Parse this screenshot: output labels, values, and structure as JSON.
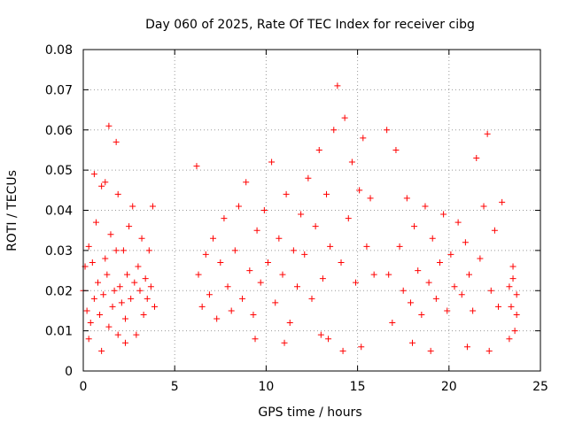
{
  "chart_data": {
    "type": "scatter",
    "title": "Day 060 of 2025, Rate Of TEC Index for receiver cibg",
    "xlabel": "GPS time / hours",
    "ylabel": "ROTI / TECUs",
    "xlim": [
      0,
      25
    ],
    "ylim": [
      0,
      0.08
    ],
    "x_ticks": [
      0,
      5,
      10,
      15,
      20,
      25
    ],
    "x_tick_labels": [
      "0",
      "5",
      "10",
      "15",
      "20",
      "25"
    ],
    "y_ticks": [
      0,
      0.01,
      0.02,
      0.03,
      0.04,
      0.05,
      0.06,
      0.07,
      0.08
    ],
    "y_tick_labels": [
      "0",
      "0.01",
      "0.02",
      "0.03",
      "0.04",
      "0.05",
      "0.06",
      "0.07",
      "0.08"
    ],
    "grid": true,
    "marker": "+",
    "color": "#ff0000",
    "series": [
      {
        "name": "ROTI",
        "points": [
          [
            0.0,
            0.02
          ],
          [
            0.1,
            0.026
          ],
          [
            0.2,
            0.015
          ],
          [
            0.3,
            0.031
          ],
          [
            0.4,
            0.012
          ],
          [
            0.5,
            0.027
          ],
          [
            0.6,
            0.018
          ],
          [
            0.7,
            0.037
          ],
          [
            0.8,
            0.022
          ],
          [
            0.9,
            0.014
          ],
          [
            1.0,
            0.046
          ],
          [
            1.1,
            0.019
          ],
          [
            1.2,
            0.028
          ],
          [
            1.3,
            0.024
          ],
          [
            1.4,
            0.011
          ],
          [
            1.5,
            0.034
          ],
          [
            1.6,
            0.016
          ],
          [
            1.7,
            0.02
          ],
          [
            1.8,
            0.03
          ],
          [
            1.9,
            0.044
          ],
          [
            2.0,
            0.021
          ],
          [
            2.1,
            0.017
          ],
          [
            2.2,
            0.03
          ],
          [
            2.3,
            0.013
          ],
          [
            2.4,
            0.024
          ],
          [
            2.5,
            0.036
          ],
          [
            2.6,
            0.018
          ],
          [
            2.7,
            0.041
          ],
          [
            2.8,
            0.022
          ],
          [
            2.9,
            0.009
          ],
          [
            3.0,
            0.026
          ],
          [
            3.1,
            0.02
          ],
          [
            3.2,
            0.033
          ],
          [
            3.3,
            0.014
          ],
          [
            3.4,
            0.023
          ],
          [
            3.5,
            0.018
          ],
          [
            3.6,
            0.03
          ],
          [
            3.7,
            0.021
          ],
          [
            3.8,
            0.041
          ],
          [
            3.9,
            0.016
          ],
          [
            1.4,
            0.061
          ],
          [
            1.8,
            0.057
          ],
          [
            0.6,
            0.049
          ],
          [
            1.2,
            0.047
          ],
          [
            0.3,
            0.008
          ],
          [
            1.0,
            0.005
          ],
          [
            1.9,
            0.009
          ],
          [
            2.3,
            0.007
          ],
          [
            6.2,
            0.051
          ],
          [
            6.3,
            0.024
          ],
          [
            6.5,
            0.016
          ],
          [
            6.7,
            0.029
          ],
          [
            6.9,
            0.019
          ],
          [
            7.1,
            0.033
          ],
          [
            7.3,
            0.013
          ],
          [
            7.5,
            0.027
          ],
          [
            7.7,
            0.038
          ],
          [
            7.9,
            0.021
          ],
          [
            8.1,
            0.015
          ],
          [
            8.3,
            0.03
          ],
          [
            8.5,
            0.041
          ],
          [
            8.7,
            0.018
          ],
          [
            8.9,
            0.047
          ],
          [
            9.1,
            0.025
          ],
          [
            9.3,
            0.014
          ],
          [
            9.5,
            0.035
          ],
          [
            9.7,
            0.022
          ],
          [
            9.9,
            0.04
          ],
          [
            10.1,
            0.027
          ],
          [
            10.3,
            0.052
          ],
          [
            10.5,
            0.017
          ],
          [
            10.7,
            0.033
          ],
          [
            10.9,
            0.024
          ],
          [
            11.1,
            0.044
          ],
          [
            11.3,
            0.012
          ],
          [
            11.5,
            0.03
          ],
          [
            11.7,
            0.021
          ],
          [
            11.9,
            0.039
          ],
          [
            12.1,
            0.029
          ],
          [
            12.3,
            0.048
          ],
          [
            12.5,
            0.018
          ],
          [
            12.7,
            0.036
          ],
          [
            12.9,
            0.055
          ],
          [
            13.1,
            0.023
          ],
          [
            13.3,
            0.044
          ],
          [
            13.5,
            0.031
          ],
          [
            13.7,
            0.06
          ],
          [
            13.9,
            0.071
          ],
          [
            14.1,
            0.027
          ],
          [
            14.3,
            0.063
          ],
          [
            14.5,
            0.038
          ],
          [
            14.7,
            0.052
          ],
          [
            14.9,
            0.022
          ],
          [
            15.1,
            0.045
          ],
          [
            15.3,
            0.058
          ],
          [
            15.5,
            0.031
          ],
          [
            15.7,
            0.043
          ],
          [
            15.9,
            0.024
          ],
          [
            13.0,
            0.009
          ],
          [
            13.4,
            0.008
          ],
          [
            14.2,
            0.005
          ],
          [
            15.2,
            0.006
          ],
          [
            11.0,
            0.007
          ],
          [
            9.4,
            0.008
          ],
          [
            16.6,
            0.06
          ],
          [
            16.7,
            0.024
          ],
          [
            16.9,
            0.012
          ],
          [
            17.1,
            0.055
          ],
          [
            17.3,
            0.031
          ],
          [
            17.5,
            0.02
          ],
          [
            17.7,
            0.043
          ],
          [
            17.9,
            0.017
          ],
          [
            18.1,
            0.036
          ],
          [
            18.3,
            0.025
          ],
          [
            18.5,
            0.014
          ],
          [
            18.7,
            0.041
          ],
          [
            18.9,
            0.022
          ],
          [
            19.1,
            0.033
          ],
          [
            19.3,
            0.018
          ],
          [
            19.5,
            0.027
          ],
          [
            19.7,
            0.039
          ],
          [
            19.9,
            0.015
          ],
          [
            20.1,
            0.029
          ],
          [
            20.3,
            0.021
          ],
          [
            20.5,
            0.037
          ],
          [
            20.7,
            0.019
          ],
          [
            20.9,
            0.032
          ],
          [
            21.1,
            0.024
          ],
          [
            21.3,
            0.015
          ],
          [
            21.5,
            0.053
          ],
          [
            21.7,
            0.028
          ],
          [
            21.9,
            0.041
          ],
          [
            22.1,
            0.059
          ],
          [
            22.3,
            0.02
          ],
          [
            22.5,
            0.035
          ],
          [
            22.7,
            0.016
          ],
          [
            22.9,
            0.042
          ],
          [
            18.0,
            0.007
          ],
          [
            19.0,
            0.005
          ],
          [
            21.0,
            0.006
          ],
          [
            22.2,
            0.005
          ],
          [
            23.3,
            0.021
          ],
          [
            23.4,
            0.016
          ],
          [
            23.5,
            0.026
          ],
          [
            23.6,
            0.01
          ],
          [
            23.7,
            0.019
          ],
          [
            23.3,
            0.008
          ],
          [
            23.7,
            0.014
          ],
          [
            23.5,
            0.023
          ]
        ]
      }
    ]
  }
}
